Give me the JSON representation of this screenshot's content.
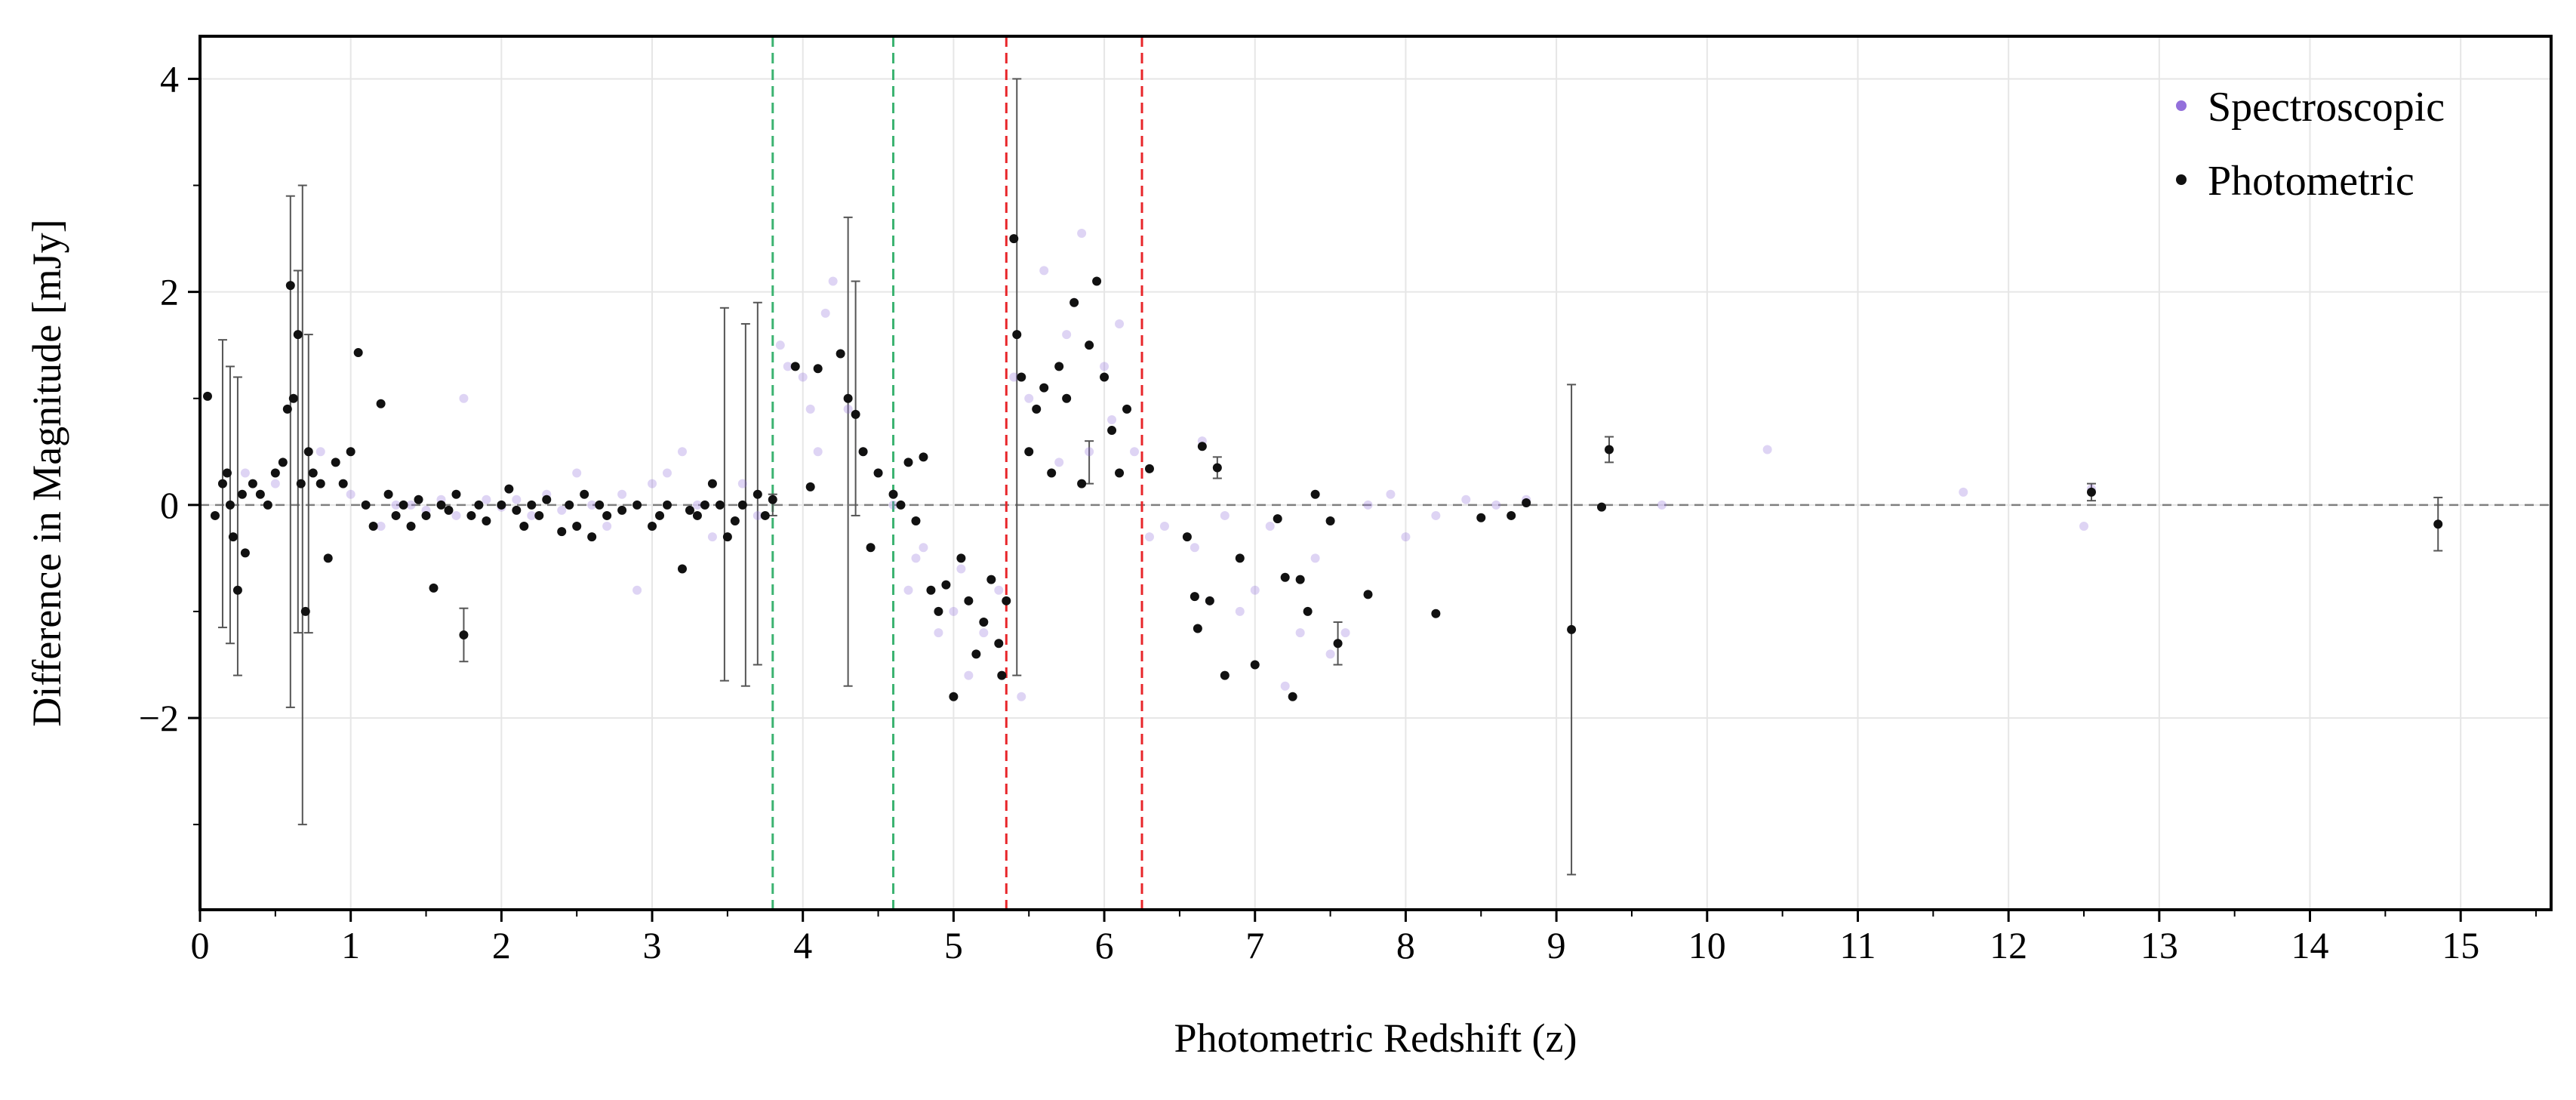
{
  "chart_data": {
    "type": "scatter",
    "xlabel": "Photometric Redshift (z)",
    "ylabel": "Difference in Magnitude [mJy]",
    "xlim": [
      0,
      15.6
    ],
    "ylim": [
      -3.8,
      4.4
    ],
    "xticks": [
      0,
      1,
      2,
      3,
      4,
      5,
      6,
      7,
      8,
      9,
      10,
      11,
      12,
      13,
      14,
      15
    ],
    "yticks": [
      -2,
      0,
      2,
      4
    ],
    "ytick_labels": [
      "−2",
      "0",
      "2",
      "4"
    ],
    "grid": true,
    "legend_position": "top-right",
    "reference_lines": {
      "horizontal_zero": {
        "y": 0,
        "color": "#808080",
        "style": "dashed"
      },
      "vertical": [
        {
          "x": 3.8,
          "color": "#3cb371",
          "style": "dashed"
        },
        {
          "x": 4.6,
          "color": "#3cb371",
          "style": "dashed"
        },
        {
          "x": 5.35,
          "color": "#e8262a",
          "style": "dashed"
        },
        {
          "x": 6.25,
          "color": "#e8262a",
          "style": "dashed"
        }
      ]
    },
    "series": [
      {
        "name": "Spectroscopic",
        "color": "#9370db",
        "points": [
          [
            1.3,
            0.0
          ],
          [
            1.5,
            -0.05
          ],
          [
            1.7,
            -0.1
          ],
          [
            1.75,
            1.0
          ],
          [
            1.9,
            0.05
          ],
          [
            2.0,
            -0.02
          ],
          [
            2.1,
            0.05
          ],
          [
            2.2,
            -0.1
          ],
          [
            2.3,
            0.1
          ],
          [
            2.5,
            0.3
          ],
          [
            2.6,
            0.0
          ],
          [
            2.7,
            -0.2
          ],
          [
            2.8,
            0.1
          ],
          [
            2.9,
            -0.8
          ],
          [
            3.0,
            0.2
          ],
          [
            3.1,
            0.3
          ],
          [
            3.2,
            0.5
          ],
          [
            3.3,
            0.0
          ],
          [
            3.4,
            -0.3
          ],
          [
            3.6,
            0.2
          ],
          [
            3.7,
            -0.1
          ],
          [
            3.85,
            1.5
          ],
          [
            3.9,
            1.3
          ],
          [
            4.0,
            1.2
          ],
          [
            4.05,
            0.9
          ],
          [
            4.1,
            0.5
          ],
          [
            4.15,
            1.8
          ],
          [
            4.2,
            2.1
          ],
          [
            4.3,
            0.9
          ],
          [
            4.4,
            0.5
          ],
          [
            4.5,
            0.3
          ],
          [
            4.6,
            0.0
          ],
          [
            4.7,
            -0.8
          ],
          [
            4.75,
            -0.5
          ],
          [
            4.8,
            -0.4
          ],
          [
            4.9,
            -1.2
          ],
          [
            5.0,
            -1.0
          ],
          [
            5.05,
            -0.6
          ],
          [
            5.1,
            -1.6
          ],
          [
            5.2,
            -1.2
          ],
          [
            5.3,
            -0.8
          ],
          [
            5.4,
            1.2
          ],
          [
            5.45,
            -1.8
          ],
          [
            5.5,
            1.0
          ],
          [
            5.6,
            2.2
          ],
          [
            5.7,
            0.4
          ],
          [
            5.75,
            1.6
          ],
          [
            5.8,
            1.9
          ],
          [
            5.85,
            2.55
          ],
          [
            5.9,
            0.5
          ],
          [
            6.0,
            1.3
          ],
          [
            6.05,
            0.8
          ],
          [
            6.1,
            1.7
          ],
          [
            6.2,
            0.5
          ],
          [
            6.3,
            -0.3
          ],
          [
            6.4,
            -0.2
          ],
          [
            6.6,
            -0.4
          ],
          [
            6.65,
            0.6
          ],
          [
            6.7,
            -0.9
          ],
          [
            6.8,
            -0.1
          ],
          [
            6.9,
            -1.0
          ],
          [
            7.0,
            -0.8
          ],
          [
            7.1,
            -0.2
          ],
          [
            7.2,
            -1.7
          ],
          [
            7.3,
            -1.2
          ],
          [
            7.4,
            -0.5
          ],
          [
            7.5,
            -1.4
          ],
          [
            7.6,
            -1.2
          ],
          [
            7.75,
            0.0
          ],
          [
            7.9,
            0.1
          ],
          [
            8.0,
            -0.3
          ],
          [
            8.2,
            -0.1
          ],
          [
            8.4,
            0.05
          ],
          [
            8.6,
            0.0
          ],
          [
            8.8,
            0.05
          ],
          [
            9.7,
            0.0
          ],
          [
            10.4,
            0.52
          ],
          [
            11.7,
            0.12
          ],
          [
            12.5,
            -0.2
          ],
          [
            12.55,
            0.15
          ],
          [
            0.3,
            0.3
          ],
          [
            0.5,
            0.2
          ],
          [
            0.8,
            0.5
          ],
          [
            1.0,
            0.1
          ],
          [
            1.2,
            -0.2
          ],
          [
            1.4,
            0.0
          ],
          [
            1.6,
            0.05
          ],
          [
            2.4,
            -0.05
          ]
        ]
      },
      {
        "name": "Photometric",
        "color": "#111111",
        "points": [
          [
            0.05,
            1.02
          ],
          [
            0.1,
            -0.1
          ],
          [
            0.15,
            0.2
          ],
          [
            0.18,
            0.3
          ],
          [
            0.2,
            0.0
          ],
          [
            0.22,
            -0.3
          ],
          [
            0.25,
            -0.8
          ],
          [
            0.28,
            0.1
          ],
          [
            0.3,
            -0.45
          ],
          [
            0.35,
            0.2
          ],
          [
            0.4,
            0.1
          ],
          [
            0.45,
            0.0
          ],
          [
            0.5,
            0.3
          ],
          [
            0.55,
            0.4
          ],
          [
            0.58,
            0.9
          ],
          [
            0.6,
            2.06
          ],
          [
            0.62,
            1.0
          ],
          [
            0.65,
            1.6
          ],
          [
            0.67,
            0.2
          ],
          [
            0.7,
            -1.0
          ],
          [
            0.72,
            0.5
          ],
          [
            0.75,
            0.3
          ],
          [
            0.8,
            0.2
          ],
          [
            0.85,
            -0.5
          ],
          [
            0.9,
            0.4
          ],
          [
            0.95,
            0.2
          ],
          [
            1.0,
            0.5
          ],
          [
            1.05,
            1.43
          ],
          [
            1.1,
            0.0
          ],
          [
            1.15,
            -0.2
          ],
          [
            1.2,
            0.95
          ],
          [
            1.25,
            0.1
          ],
          [
            1.3,
            -0.1
          ],
          [
            1.35,
            0.0
          ],
          [
            1.4,
            -0.2
          ],
          [
            1.45,
            0.05
          ],
          [
            1.5,
            -0.1
          ],
          [
            1.55,
            -0.78
          ],
          [
            1.6,
            0.0
          ],
          [
            1.65,
            -0.05
          ],
          [
            1.7,
            0.1
          ],
          [
            1.75,
            -1.22
          ],
          [
            1.8,
            -0.1
          ],
          [
            1.85,
            0.0
          ],
          [
            1.9,
            -0.15
          ],
          [
            2.0,
            0.0
          ],
          [
            2.05,
            0.15
          ],
          [
            2.1,
            -0.05
          ],
          [
            2.15,
            -0.2
          ],
          [
            2.2,
            0.0
          ],
          [
            2.25,
            -0.1
          ],
          [
            2.3,
            0.05
          ],
          [
            2.4,
            -0.25
          ],
          [
            2.45,
            0.0
          ],
          [
            2.5,
            -0.2
          ],
          [
            2.55,
            0.1
          ],
          [
            2.6,
            -0.3
          ],
          [
            2.65,
            0.0
          ],
          [
            2.7,
            -0.1
          ],
          [
            2.8,
            -0.05
          ],
          [
            2.9,
            0.0
          ],
          [
            3.0,
            -0.2
          ],
          [
            3.05,
            -0.1
          ],
          [
            3.1,
            0.0
          ],
          [
            3.2,
            -0.6
          ],
          [
            3.25,
            -0.05
          ],
          [
            3.3,
            -0.1
          ],
          [
            3.35,
            0.0
          ],
          [
            3.4,
            0.2
          ],
          [
            3.45,
            0.0
          ],
          [
            3.5,
            -0.3
          ],
          [
            3.55,
            -0.15
          ],
          [
            3.6,
            0.0
          ],
          [
            3.7,
            0.1
          ],
          [
            3.75,
            -0.1
          ],
          [
            3.8,
            0.05
          ],
          [
            3.95,
            1.3
          ],
          [
            4.05,
            0.17
          ],
          [
            4.1,
            1.28
          ],
          [
            4.25,
            1.42
          ],
          [
            4.3,
            1.0
          ],
          [
            4.35,
            0.85
          ],
          [
            4.4,
            0.5
          ],
          [
            4.45,
            -0.4
          ],
          [
            4.5,
            0.3
          ],
          [
            4.6,
            0.1
          ],
          [
            4.65,
            0.0
          ],
          [
            4.7,
            0.4
          ],
          [
            4.75,
            -0.15
          ],
          [
            4.8,
            0.45
          ],
          [
            4.85,
            -0.8
          ],
          [
            4.9,
            -1.0
          ],
          [
            4.95,
            -0.75
          ],
          [
            5.0,
            -1.8
          ],
          [
            5.05,
            -0.5
          ],
          [
            5.1,
            -0.9
          ],
          [
            5.15,
            -1.4
          ],
          [
            5.2,
            -1.1
          ],
          [
            5.25,
            -0.7
          ],
          [
            5.3,
            -1.3
          ],
          [
            5.32,
            -1.6
          ],
          [
            5.35,
            -0.9
          ],
          [
            5.4,
            2.5
          ],
          [
            5.42,
            1.6
          ],
          [
            5.45,
            1.2
          ],
          [
            5.5,
            0.5
          ],
          [
            5.55,
            0.9
          ],
          [
            5.6,
            1.1
          ],
          [
            5.65,
            0.3
          ],
          [
            5.7,
            1.3
          ],
          [
            5.75,
            1.0
          ],
          [
            5.8,
            1.9
          ],
          [
            5.85,
            0.2
          ],
          [
            5.9,
            1.5
          ],
          [
            5.95,
            2.1
          ],
          [
            6.0,
            1.2
          ],
          [
            6.05,
            0.7
          ],
          [
            6.1,
            0.3
          ],
          [
            6.15,
            0.9
          ],
          [
            6.3,
            0.34
          ],
          [
            6.55,
            -0.3
          ],
          [
            6.6,
            -0.86
          ],
          [
            6.62,
            -1.16
          ],
          [
            6.65,
            0.55
          ],
          [
            6.7,
            -0.9
          ],
          [
            6.75,
            0.35
          ],
          [
            6.8,
            -1.6
          ],
          [
            6.9,
            -0.5
          ],
          [
            7.0,
            -1.5
          ],
          [
            7.15,
            -0.13
          ],
          [
            7.2,
            -0.68
          ],
          [
            7.25,
            -1.8
          ],
          [
            7.3,
            -0.7
          ],
          [
            7.35,
            -1.0
          ],
          [
            7.4,
            0.1
          ],
          [
            7.5,
            -0.15
          ],
          [
            7.55,
            -1.3
          ],
          [
            7.75,
            -0.84
          ],
          [
            8.2,
            -1.02
          ],
          [
            8.5,
            -0.12
          ],
          [
            8.7,
            -0.1
          ],
          [
            8.8,
            0.02
          ],
          [
            9.1,
            -1.17
          ],
          [
            9.3,
            -0.02
          ],
          [
            9.35,
            0.52
          ],
          [
            12.55,
            0.12
          ],
          [
            14.85,
            -0.18
          ]
        ],
        "error_bars": [
          [
            0.15,
            0.2,
            1.35
          ],
          [
            0.2,
            0.0,
            1.3
          ],
          [
            0.25,
            -0.2,
            1.4
          ],
          [
            0.6,
            0.5,
            2.4
          ],
          [
            0.65,
            0.5,
            1.7
          ],
          [
            0.68,
            0.0,
            3.0
          ],
          [
            0.72,
            0.2,
            1.4
          ],
          [
            1.75,
            -1.22,
            0.25
          ],
          [
            3.48,
            0.1,
            1.75
          ],
          [
            3.62,
            0.0,
            1.7
          ],
          [
            3.7,
            0.2,
            1.7
          ],
          [
            3.8,
            0.0,
            0.1
          ],
          [
            4.3,
            0.5,
            2.2
          ],
          [
            4.35,
            1.0,
            1.1
          ],
          [
            5.42,
            1.2,
            2.8
          ],
          [
            5.9,
            0.4,
            0.2
          ],
          [
            6.75,
            0.35,
            0.1
          ],
          [
            7.55,
            -1.3,
            0.2
          ],
          [
            9.1,
            -1.17,
            2.3
          ],
          [
            9.35,
            0.52,
            0.12
          ],
          [
            12.55,
            0.12,
            0.08
          ],
          [
            14.85,
            -0.18,
            0.25
          ]
        ]
      }
    ]
  }
}
